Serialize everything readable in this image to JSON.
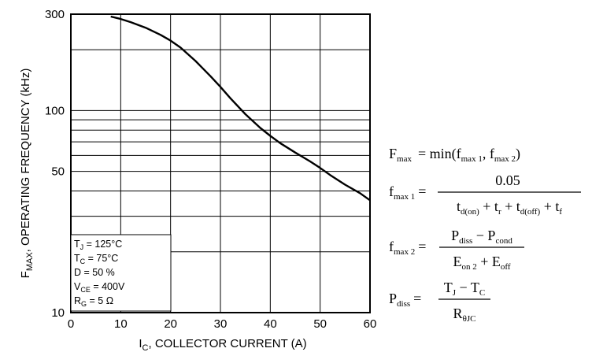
{
  "chart_data": {
    "type": "line",
    "title": "",
    "xlabel": {
      "main": "I",
      "sub": "C",
      "rest": ", COLLECTOR CURRENT (A)"
    },
    "ylabel": {
      "main": "F",
      "sub": "MAX",
      "rest": ", OPERATING FREQUENCY (kHz)"
    },
    "x_axis": {
      "min": 0,
      "max": 60,
      "scale": "linear",
      "ticks": [
        0,
        10,
        20,
        30,
        40,
        50,
        60
      ],
      "tick_labels": [
        "0",
        "10",
        "20",
        "30",
        "40",
        "50",
        "60"
      ]
    },
    "y_axis": {
      "min": 10,
      "max": 300,
      "scale": "log",
      "ticks": [
        10,
        100,
        50,
        300
      ],
      "tick_labels": [
        "10",
        "100",
        "50",
        "300"
      ],
      "gridlines": [
        20,
        30,
        40,
        50,
        60,
        70,
        80,
        90,
        100,
        200
      ]
    },
    "grid": true,
    "legend": "none",
    "series": [
      {
        "line_color": "#000000",
        "x": [
          8,
          10,
          12,
          15,
          18,
          20,
          22,
          25,
          28,
          30,
          32,
          35,
          38,
          40,
          42,
          45,
          48,
          50,
          52,
          55,
          58,
          60
        ],
        "y": [
          292,
          284,
          274,
          257,
          237,
          222,
          205,
          176,
          148,
          131,
          115,
          96,
          82,
          75,
          69,
          62,
          56,
          52,
          48,
          43,
          39,
          36
        ]
      }
    ],
    "conditions": {
      "placement": "bottom-left",
      "lines": [
        {
          "main": "T",
          "sub": "J",
          "value": " =  125°C"
        },
        {
          "main": "T",
          "sub": "C",
          "value": " =  75°C"
        },
        {
          "main": "D = 50 %",
          "sub": "",
          "value": ""
        },
        {
          "main": "V",
          "sub": "CE",
          "value": " =  400V"
        },
        {
          "main": "R",
          "sub": "G",
          "value": " = 5 Ω"
        }
      ]
    }
  },
  "equations": {
    "fmax": {
      "lhs": "F",
      "lhs_sub": "max",
      "rhs": "= min(f",
      "s1": "max 1",
      "mid": ", f",
      "s2": "max 2",
      "end": ")"
    },
    "fmax1": {
      "lhs": "f",
      "lhs_sub": "max 1",
      "eq": "=",
      "numerator": "0.05",
      "den": [
        {
          "t": "t",
          "s": "d(on)"
        },
        {
          "t": " + t",
          "s": "r"
        },
        {
          "t": " + t",
          "s": "d(off)"
        },
        {
          "t": " + t",
          "s": "f"
        }
      ]
    },
    "fmax2": {
      "lhs": "f",
      "lhs_sub": "max 2",
      "eq": "=",
      "num": [
        {
          "t": "P",
          "s": "diss"
        },
        {
          "t": " − P",
          "s": "cond"
        }
      ],
      "den": [
        {
          "t": "E",
          "s": "on 2"
        },
        {
          "t": " + E",
          "s": "off"
        }
      ]
    },
    "pdiss": {
      "lhs": "P",
      "lhs_sub": "diss",
      "eq": "=",
      "num": [
        {
          "t": "T",
          "s": "J"
        },
        {
          "t": " − T",
          "s": "C"
        }
      ],
      "den": [
        {
          "t": "R",
          "s": "θJC"
        }
      ]
    }
  }
}
